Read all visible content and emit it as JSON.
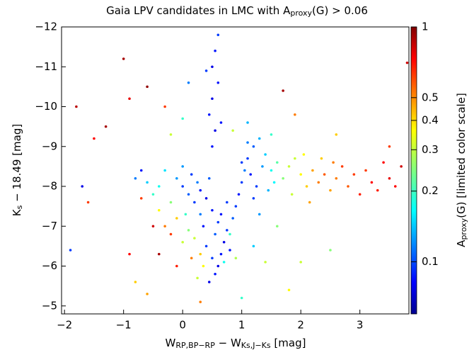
{
  "chart_data": {
    "type": "scatter",
    "title": [
      "Gaia LPV candidates in LMC with A",
      "proxy",
      "(G) > 0.06"
    ],
    "xlabel": [
      "W",
      "RP,BP−RP",
      " − W",
      "Ks,J−Ks",
      "  [mag]"
    ],
    "ylabel": [
      "K",
      "s",
      " − 18.49  [mag]"
    ],
    "colorbar_label": [
      "A",
      "proxy",
      "(G)  [limited color scale]"
    ],
    "colormap": "jet",
    "color_log": true,
    "clim": [
      0.06,
      1
    ],
    "cticks": [
      0.1,
      0.2,
      0.3,
      0.4,
      0.5,
      1
    ],
    "xlim": [
      -2.05,
      3.83
    ],
    "xticks": [
      {
        "value": -2,
        "label": "−2"
      },
      {
        "value": -1,
        "label": "−1"
      },
      0,
      1,
      2,
      3
    ],
    "ylim": [
      -12,
      -4.8
    ],
    "y_inverted": true,
    "yticks": [
      {
        "value": -12,
        "label": "−12"
      },
      {
        "value": -11,
        "label": "−11"
      },
      {
        "value": -10,
        "label": "−10"
      },
      {
        "value": -9,
        "label": "−9"
      },
      {
        "value": -8,
        "label": "−8"
      },
      {
        "value": -7,
        "label": "−7"
      },
      {
        "value": -6,
        "label": "−6"
      },
      {
        "value": -5,
        "label": "−5"
      }
    ],
    "x": [
      0.45,
      0.55,
      0.6,
      0.5,
      0.65,
      0.4,
      0.7,
      0.55,
      0.35,
      0.6,
      0.3,
      0.5,
      0.2,
      0.4,
      0.1,
      0.3,
      0.0,
      0.25,
      -0.1,
      0.15,
      0.8,
      0.75,
      0.85,
      0.9,
      0.95,
      1.0,
      1.05,
      1.1,
      1.2,
      1.3,
      1.15,
      1.25,
      1.35,
      1.4,
      1.5,
      1.6,
      1.7,
      1.8,
      1.45,
      1.55,
      1.0,
      1.1,
      1.2,
      0.5,
      0.55,
      0.45,
      0.5,
      0.6,
      0.5,
      0.55,
      0.6,
      0.4,
      0.65,
      2.0,
      2.1,
      2.2,
      2.3,
      2.4,
      2.5,
      2.6,
      2.7,
      2.8,
      2.9,
      3.0,
      3.1,
      3.2,
      3.3,
      3.4,
      3.5,
      3.6,
      3.7,
      1.9,
      2.05,
      2.35,
      1.85,
      2.15,
      2.55,
      -0.3,
      -0.2,
      -0.1,
      0.0,
      0.1,
      -0.4,
      -0.5,
      -0.6,
      -0.4,
      -0.2,
      0.05,
      0.2,
      0.3,
      -0.7,
      -0.8,
      -0.3,
      -0.5,
      0.15,
      0.35,
      0.7,
      0.8,
      0.9,
      1.2,
      1.4,
      1.6,
      1.3,
      -1.0,
      -1.8,
      -1.5,
      -1.3,
      -0.9,
      -0.6,
      -1.6,
      -1.9,
      -0.9,
      -1.7,
      -0.8,
      -0.6,
      0.0,
      -0.2,
      0.1,
      -0.3,
      1.7,
      1.9,
      2.6,
      3.8,
      3.5,
      2.0,
      2.5,
      1.8,
      1.0,
      0.3,
      -0.4,
      -0.1,
      0.25,
      1.1,
      0.85,
      1.5,
      0.75,
      0.65,
      0.45,
      0.0,
      -0.7
    ],
    "values": [
      -5.6,
      -5.8,
      -6.0,
      -6.2,
      -6.3,
      -6.5,
      -6.6,
      -6.8,
      -7.0,
      -7.1,
      -7.3,
      -7.4,
      -7.6,
      -7.7,
      -7.8,
      -7.9,
      -8.0,
      -8.1,
      -8.2,
      -8.3,
      -6.4,
      -6.9,
      -7.2,
      -7.5,
      -7.8,
      -8.1,
      -8.4,
      -8.7,
      -9.0,
      -9.2,
      -8.3,
      -8.0,
      -8.5,
      -8.8,
      -8.4,
      -8.6,
      -8.2,
      -8.5,
      -7.9,
      -8.1,
      -8.6,
      -9.1,
      -7.7,
      -9.0,
      -9.4,
      -9.8,
      -10.2,
      -10.6,
      -11.0,
      -11.4,
      -11.8,
      -10.9,
      -9.6,
      -8.3,
      -8.0,
      -8.4,
      -8.1,
      -8.3,
      -7.9,
      -8.2,
      -8.5,
      -8.0,
      -8.3,
      -7.8,
      -8.4,
      -8.1,
      -7.9,
      -8.6,
      -8.2,
      -8.0,
      -8.5,
      -8.7,
      -8.8,
      -8.7,
      -7.8,
      -7.6,
      -8.6,
      -7.0,
      -6.8,
      -7.2,
      -6.6,
      -6.9,
      -7.4,
      -7.8,
      -8.1,
      -8.0,
      -7.6,
      -7.3,
      -6.7,
      -6.3,
      -7.7,
      -8.2,
      -8.4,
      -7.0,
      -6.2,
      -6.0,
      -6.1,
      -6.8,
      -6.2,
      -6.5,
      -6.1,
      -7.0,
      -7.3,
      -11.2,
      -10.0,
      -9.2,
      -9.5,
      -10.2,
      -10.5,
      -7.6,
      -6.4,
      -6.3,
      -8.0,
      -5.6,
      -5.3,
      -9.7,
      -9.3,
      -10.6,
      -10.0,
      -10.4,
      -9.8,
      -9.3,
      -11.1,
      -9.0,
      -6.1,
      -6.4,
      -5.4,
      -5.2,
      -5.1,
      -6.3,
      -6.0,
      -5.7,
      -9.6,
      -9.4,
      -9.3,
      -7.6,
      -7.3,
      -8.2,
      -8.5,
      -8.4
    ],
    "color_values": [
      0.08,
      0.09,
      0.08,
      0.1,
      0.09,
      0.1,
      0.08,
      0.11,
      0.09,
      0.1,
      0.12,
      0.09,
      0.1,
      0.08,
      0.11,
      0.09,
      0.1,
      0.12,
      0.13,
      0.1,
      0.09,
      0.1,
      0.11,
      0.1,
      0.09,
      0.1,
      0.12,
      0.1,
      0.11,
      0.14,
      0.09,
      0.1,
      0.13,
      0.15,
      0.18,
      0.22,
      0.25,
      0.3,
      0.14,
      0.17,
      0.1,
      0.12,
      0.1,
      0.09,
      0.08,
      0.09,
      0.08,
      0.09,
      0.08,
      0.09,
      0.1,
      0.1,
      0.09,
      0.35,
      0.4,
      0.45,
      0.5,
      0.55,
      0.45,
      0.5,
      0.6,
      0.55,
      0.6,
      0.65,
      0.6,
      0.7,
      0.65,
      0.7,
      0.75,
      0.7,
      0.8,
      0.3,
      0.35,
      0.4,
      0.3,
      0.45,
      0.5,
      0.5,
      0.6,
      0.4,
      0.3,
      0.25,
      0.35,
      0.2,
      0.15,
      0.18,
      0.25,
      0.2,
      0.3,
      0.4,
      0.6,
      0.12,
      0.16,
      0.8,
      0.5,
      0.35,
      0.18,
      0.2,
      0.28,
      0.15,
      0.3,
      0.25,
      0.13,
      0.9,
      0.85,
      0.7,
      0.9,
      0.75,
      0.95,
      0.6,
      0.1,
      0.7,
      0.08,
      0.4,
      0.45,
      0.2,
      0.3,
      0.12,
      0.6,
      0.9,
      0.5,
      0.4,
      0.8,
      0.6,
      0.3,
      0.25,
      0.35,
      0.2,
      0.5,
      0.9,
      0.65,
      0.3,
      0.14,
      0.3,
      0.2,
      0.1,
      0.09,
      0.11,
      0.13,
      0.09
    ]
  }
}
